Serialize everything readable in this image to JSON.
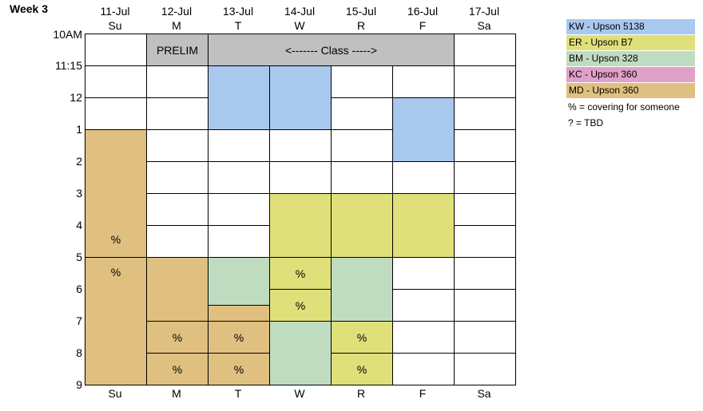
{
  "title": "Week 3",
  "dates": [
    "11-Jul",
    "12-Jul",
    "13-Jul",
    "14-Jul",
    "15-Jul",
    "16-Jul",
    "17-Jul"
  ],
  "days": [
    "Su",
    "M",
    "T",
    "W",
    "R",
    "F",
    "Sa"
  ],
  "times": [
    "10AM",
    "11:15",
    "12",
    "1",
    "2",
    "3",
    "4",
    "5",
    "6",
    "7",
    "8",
    "9"
  ],
  "events": {
    "prelim": "PRELIM",
    "class": "<------- Class ----->"
  },
  "mark": "%",
  "colors": {
    "KW": "#a8c8ee",
    "ER": "#e0e07a",
    "BM": "#c0dcc0",
    "KC": "#e0a0c8",
    "MD": "#e0c080",
    "gray": "#c0c0c0"
  },
  "legend": [
    {
      "label": "KW - Upson 5138",
      "color": "#a8c8ee"
    },
    {
      "label": "ER - Upson B7",
      "color": "#e0e07a"
    },
    {
      "label": "BM - Upson 328",
      "color": "#c0dcc0"
    },
    {
      "label": "KC - Upson 360",
      "color": "#e0a0c8"
    },
    {
      "label": "MD - Upson 360",
      "color": "#e0c080"
    }
  ],
  "notes": [
    "% = covering for someone",
    "? = TBD"
  ]
}
